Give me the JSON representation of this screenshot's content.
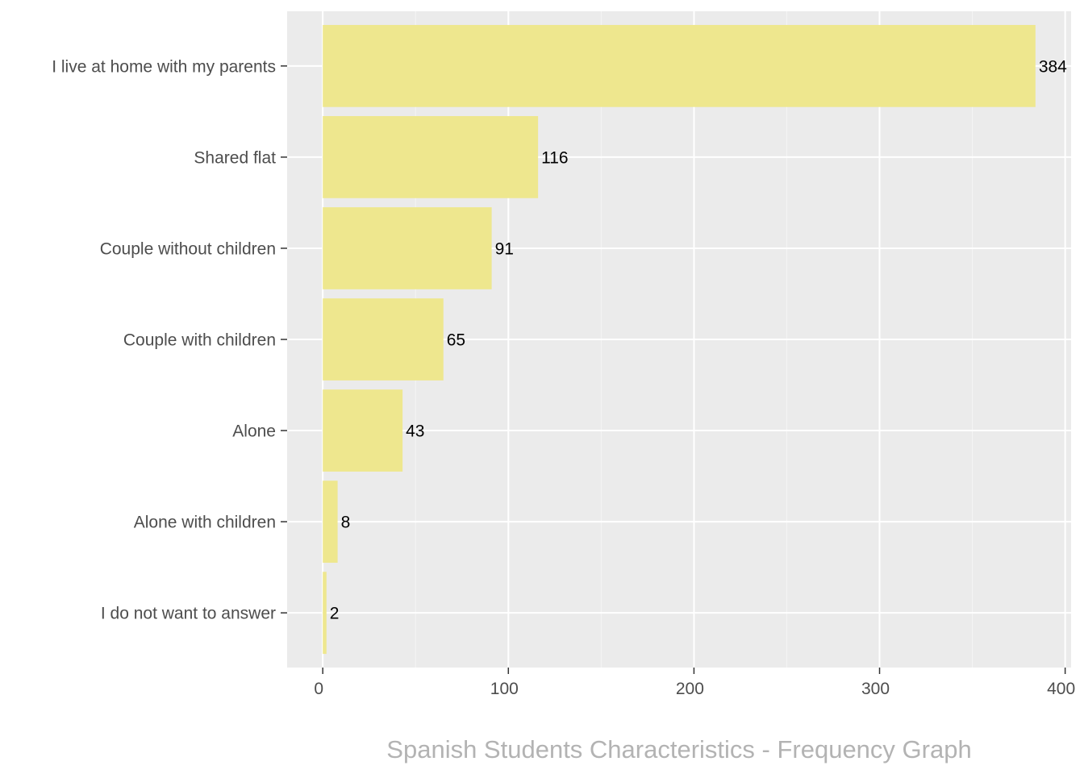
{
  "chart_data": {
    "type": "bar",
    "orientation": "horizontal",
    "categories": [
      "I live at home with my parents",
      "Shared flat",
      "Couple without children",
      "Couple with children",
      "Alone",
      "Alone with children",
      "I do not want to answer"
    ],
    "values": [
      384,
      116,
      91,
      65,
      43,
      8,
      2
    ],
    "x_ticks": [
      0,
      100,
      200,
      300,
      400
    ],
    "xlim": [
      -19.2,
      403.2
    ],
    "title": "",
    "caption": "Spanish Students Characteristics - Frequency Graph",
    "xlabel": "",
    "ylabel": "",
    "grid": true,
    "colors": {
      "bar": "#EEE78E",
      "panel": "#EBEBEB",
      "grid_major": "#FFFFFF",
      "grid_minor": "#F5F5F5",
      "axis_text": "#4D4D4D",
      "caption_text": "#B3B3B3"
    }
  }
}
